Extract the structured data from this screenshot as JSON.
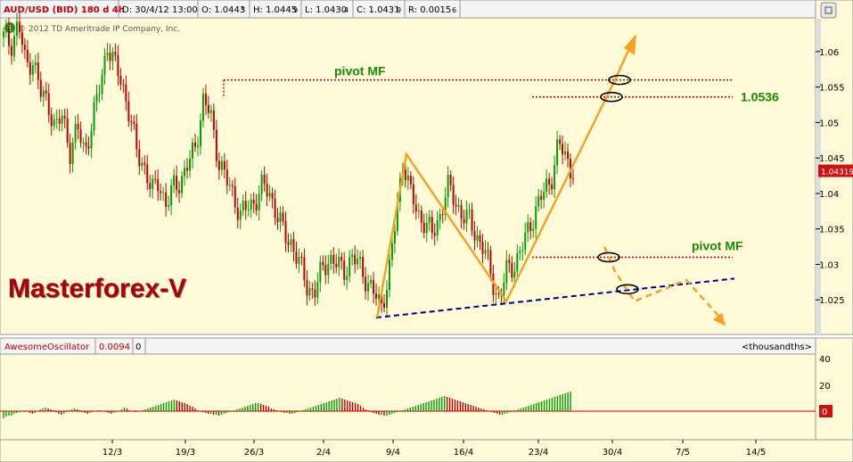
{
  "header": {
    "symbol": "AUD/USD (BID) 180 d 4h",
    "date": "D: 30/4/12 13:00",
    "open": "O: 1.0443",
    "open_sub": "5",
    "high": "H: 1.0445",
    "high_sub": "9",
    "low": "L: 1.0430",
    "low_sub": "4",
    "close": "C: 1.0431",
    "close_sub": "9",
    "range": "R: 0.0015",
    "range_sub": "6"
  },
  "copyright": "© 2012 TD Ameritrade IP Company, Inc.",
  "brand": "Masterforex-V",
  "oscillator": {
    "name": "AwesomeOscillator",
    "value": "0.0094",
    "zero": "0",
    "units": "<thousandths>",
    "ticks": [
      "40",
      "20",
      "0"
    ],
    "current_badge": "0"
  },
  "colors": {
    "background": "#fffbd8",
    "bull": "#00a000",
    "bear": "#c00000",
    "pattern": "#f5a020",
    "trendline": "#000080",
    "pivot_line": "#c00000",
    "label_green": "#1a8a00",
    "price_badge": "#d01010"
  },
  "chart_data": {
    "type": "candlestick",
    "yticks": [
      "1.06",
      "1.055",
      "1.05",
      "1.045",
      "1.04",
      "1.035",
      "1.03",
      "1.025"
    ],
    "ylim": [
      1.0205,
      1.0645
    ],
    "current_price": "1.04319",
    "xticks": [
      "12/3",
      "19/3",
      "26/3",
      "2/4",
      "9/4",
      "16/4",
      "23/4",
      "30/4",
      "7/5",
      "14/5"
    ],
    "annotations": {
      "pivot_top_label": "pivot MF",
      "pivot_top_value": 1.056,
      "level_label": "1.0536",
      "level_value": 1.0536,
      "pivot_bottom_label": "pivot MF",
      "pivot_bottom_value": 1.031
    },
    "price_path": [
      [
        0,
        1.062
      ],
      [
        3,
        1.061
      ],
      [
        6,
        1.064
      ],
      [
        9,
        1.058
      ],
      [
        12,
        1.059
      ],
      [
        15,
        1.054
      ],
      [
        18,
        1.053
      ],
      [
        21,
        1.049
      ],
      [
        24,
        1.051
      ],
      [
        27,
        1.046
      ],
      [
        30,
        1.049
      ],
      [
        33,
        1.046
      ],
      [
        36,
        1.05
      ],
      [
        39,
        1.055
      ],
      [
        42,
        1.061
      ],
      [
        45,
        1.058
      ],
      [
        48,
        1.056
      ],
      [
        51,
        1.051
      ],
      [
        54,
        1.046
      ],
      [
        57,
        1.044
      ],
      [
        60,
        1.04
      ],
      [
        63,
        1.042
      ],
      [
        66,
        1.038
      ],
      [
        69,
        1.041
      ],
      [
        72,
        1.042
      ],
      [
        75,
        1.044
      ],
      [
        78,
        1.047
      ],
      [
        81,
        1.053
      ],
      [
        84,
        1.051
      ],
      [
        87,
        1.045
      ],
      [
        90,
        1.042
      ],
      [
        93,
        1.04
      ],
      [
        96,
        1.037
      ],
      [
        99,
        1.038
      ],
      [
        102,
        1.039
      ],
      [
        105,
        1.041
      ],
      [
        108,
        1.04
      ],
      [
        111,
        1.037
      ],
      [
        114,
        1.034
      ],
      [
        117,
        1.033
      ],
      [
        120,
        1.03
      ],
      [
        123,
        1.027
      ],
      [
        126,
        1.026
      ],
      [
        129,
        1.029
      ],
      [
        132,
        1.031
      ],
      [
        135,
        1.03
      ],
      [
        138,
        1.029
      ],
      [
        141,
        1.031
      ],
      [
        144,
        1.03
      ],
      [
        147,
        1.028
      ],
      [
        150,
        1.026
      ],
      [
        153,
        1.024
      ],
      [
        156,
        1.028
      ],
      [
        159,
        1.036
      ],
      [
        162,
        1.045
      ],
      [
        165,
        1.04
      ],
      [
        168,
        1.037
      ],
      [
        171,
        1.036
      ],
      [
        174,
        1.034
      ],
      [
        177,
        1.037
      ],
      [
        180,
        1.041
      ],
      [
        183,
        1.039
      ],
      [
        186,
        1.037
      ],
      [
        189,
        1.036
      ],
      [
        192,
        1.034
      ],
      [
        195,
        1.032
      ],
      [
        198,
        1.028
      ],
      [
        201,
        1.025
      ],
      [
        204,
        1.029
      ],
      [
        207,
        1.03
      ],
      [
        210,
        1.032
      ],
      [
        213,
        1.035
      ],
      [
        216,
        1.038
      ],
      [
        219,
        1.04
      ],
      [
        222,
        1.042
      ],
      [
        225,
        1.047
      ],
      [
        228,
        1.045
      ],
      [
        231,
        1.0432
      ]
    ],
    "pattern_path": [
      [
        1.0225,
        0
      ],
      [
        1.0455,
        1
      ],
      [
        1.0248,
        2
      ],
      [
        1.0555,
        3
      ]
    ],
    "ao_values": [
      -8,
      -6,
      -5,
      -5,
      -3,
      -2,
      -1,
      0,
      1,
      0,
      -2,
      -3,
      -2,
      0,
      2,
      3,
      4,
      3,
      2,
      1,
      -1,
      -3,
      -4,
      -3,
      -1,
      1,
      2,
      3,
      2,
      1,
      -1,
      -2,
      -3,
      -2,
      -1,
      0,
      1,
      1,
      0,
      -1,
      -2,
      -3,
      -2,
      -1,
      0,
      2,
      4,
      3,
      1,
      0,
      -1,
      -1,
      0,
      1,
      2,
      3,
      4,
      5,
      6,
      7,
      8,
      9,
      10,
      11,
      12,
      13,
      12,
      11,
      10,
      9,
      8,
      6,
      5,
      3,
      1,
      0,
      -1,
      -2,
      -3,
      -3,
      -4,
      -4,
      -5,
      -4,
      -3,
      -2,
      -1,
      0,
      1,
      2,
      3,
      4,
      5,
      6,
      7,
      8,
      9,
      9,
      8,
      7,
      6,
      5,
      3,
      2,
      1,
      0,
      -1,
      -2,
      -2,
      -3,
      -3,
      -2,
      -1,
      0,
      1,
      2,
      3,
      4,
      5,
      6,
      7,
      8,
      9,
      10,
      11,
      12,
      13,
      14,
      15,
      14,
      13,
      12,
      11,
      10,
      9,
      8,
      6,
      4,
      2,
      1,
      -1,
      -2,
      -3,
      -4,
      -4,
      -5,
      -5,
      -4,
      -3,
      -2,
      -1,
      0,
      1,
      2,
      3,
      4,
      5,
      6,
      7,
      8,
      9,
      10,
      11,
      12,
      13,
      14,
      15,
      16,
      17,
      16,
      15,
      14,
      13,
      12,
      11,
      10,
      9,
      8,
      7,
      6,
      5,
      4,
      3,
      2,
      1,
      0,
      -1,
      -2,
      -3,
      -4,
      -4,
      -3,
      -2,
      -1,
      0,
      1,
      2,
      3,
      4,
      5,
      6,
      7,
      8,
      9,
      10,
      11,
      12,
      13,
      14,
      15,
      16,
      17,
      18,
      19,
      20,
      21,
      22
    ]
  }
}
